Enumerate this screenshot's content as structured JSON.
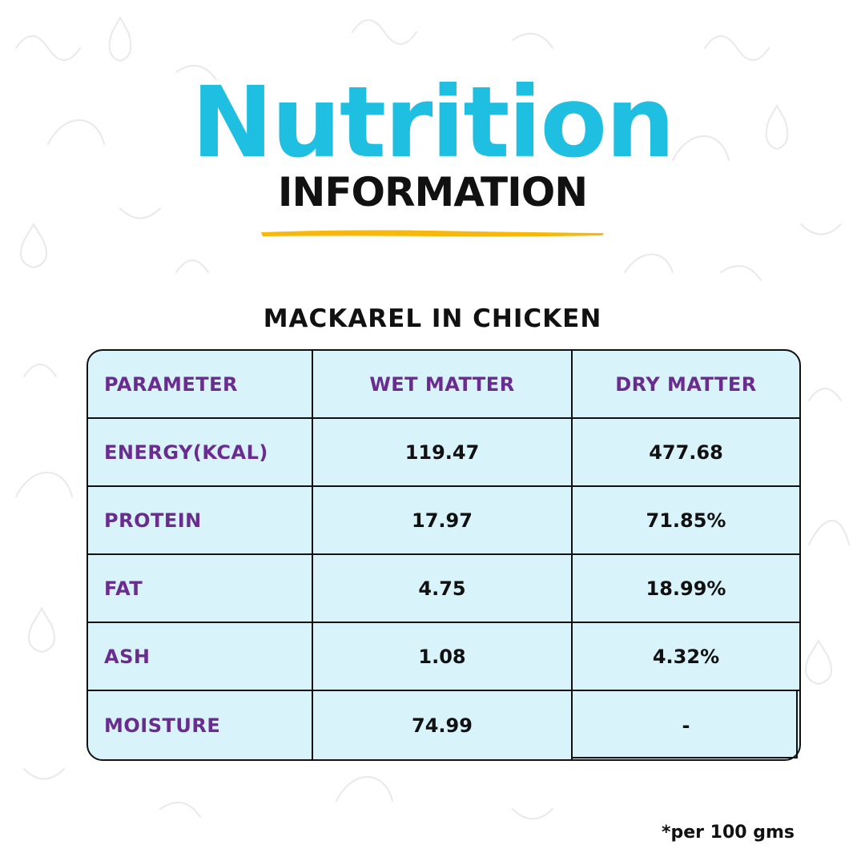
{
  "header": {
    "title": "Nutrition",
    "subtitle": "INFORMATION"
  },
  "product_name": "MACKAREL IN CHICKEN",
  "table": {
    "columns": [
      "PARAMETER",
      "WET MATTER",
      "DRY MATTER"
    ],
    "rows": [
      {
        "parameter": "ENERGY(KCAL)",
        "wet": "119.47",
        "dry": "477.68"
      },
      {
        "parameter": "PROTEIN",
        "wet": "17.97",
        "dry": "71.85%"
      },
      {
        "parameter": "FAT",
        "wet": "4.75",
        "dry": "18.99%"
      },
      {
        "parameter": "ASH",
        "wet": "1.08",
        "dry": "4.32%"
      },
      {
        "parameter": "MOISTURE",
        "wet": "74.99",
        "dry": "-"
      }
    ]
  },
  "footnote": "*per 100 gms",
  "colors": {
    "title": "#1fbfe2",
    "accent_underline": "#f6b80c",
    "label_purple": "#6a2c8e",
    "table_fill": "#d8f3fa",
    "text_dark": "#111111"
  },
  "decor": {
    "background": "doodle-cat-pattern"
  }
}
